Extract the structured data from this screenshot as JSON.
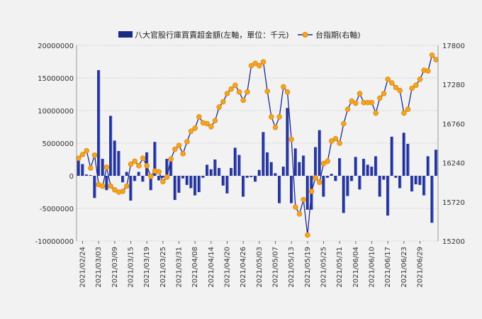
{
  "chart_data": {
    "type": "bar+line",
    "legend": {
      "placement": "top-center",
      "bar_label": "八大官股行庫買賣超金額(左軸，單位：千元)",
      "line_label": "台指期(右軸)"
    },
    "left_axis": {
      "min": -10000000,
      "max": 20000000,
      "ticks": [
        20000000,
        15000000,
        10000000,
        5000000,
        0,
        -5000000,
        -10000000
      ]
    },
    "right_axis": {
      "min": 15200,
      "max": 17800,
      "ticks": [
        17800,
        17280,
        16760,
        16240,
        15720,
        15200
      ]
    },
    "grid": "horizontal dotted",
    "x_ticks": [
      "2021/02/24",
      "2021/03/03",
      "2021/03/09",
      "2021/03/15",
      "2021/03/19",
      "2021/03/25",
      "2021/03/31",
      "2021/04/08",
      "2021/04/14",
      "2021/04/20",
      "2021/04/26",
      "2021/05/03",
      "2021/05/07",
      "2021/05/13",
      "2021/05/19",
      "2021/05/25",
      "2021/05/31",
      "2021/06/04",
      "2021/06/10",
      "2021/06/17",
      "2021/06/23",
      "2021/06/29"
    ],
    "x_tick_index": [
      1,
      5,
      9,
      13,
      17,
      21,
      25,
      29,
      33,
      37,
      41,
      45,
      49,
      53,
      57,
      61,
      65,
      69,
      73,
      77,
      81,
      85
    ],
    "bars": [
      2400000,
      1800000,
      200000,
      100000,
      -3400000,
      16200000,
      2600000,
      -2200000,
      9200000,
      5400000,
      3800000,
      -1000000,
      600000,
      -3800000,
      -800000,
      600000,
      -900000,
      3600000,
      -2200000,
      5200000,
      -700000,
      -300000,
      2600000,
      2700000,
      -3700000,
      -2600000,
      -400000,
      -1400000,
      -1900000,
      -3000000,
      -2500000,
      -300000,
      1700000,
      1000000,
      2500000,
      1200000,
      -1500000,
      -2700000,
      1200000,
      4300000,
      3200000,
      -3200000,
      -300000,
      -200000,
      -900000,
      900000,
      6700000,
      3600000,
      2100000,
      400000,
      -4200000,
      1400000,
      10400000,
      -4200000,
      4200000,
      2100000,
      3100000,
      -5200000,
      -5200000,
      4400000,
      7000000,
      -3200000,
      -300000,
      300000,
      -800000,
      2700000,
      -5700000,
      -3100000,
      -800000,
      2900000,
      -2100000,
      2600000,
      1700000,
      1400000,
      3000000,
      -3200000,
      -600000,
      -6100000,
      6000000,
      -300000,
      -1900000,
      6600000,
      4900000,
      -2400000,
      -1300000,
      -1400000,
      -3000000,
      3000000,
      -7200000,
      4000000
    ],
    "index": [
      16300,
      16350,
      16400,
      16170,
      16340,
      15950,
      15930,
      16180,
      15930,
      15880,
      15850,
      15860,
      15930,
      16220,
      16260,
      16200,
      16300,
      16200,
      16060,
      16130,
      16120,
      15990,
      16050,
      16290,
      16420,
      16470,
      16360,
      16520,
      16660,
      16700,
      16850,
      16770,
      16760,
      16720,
      16800,
      16980,
      17050,
      17160,
      17220,
      17270,
      17180,
      17070,
      17180,
      17530,
      17560,
      17530,
      17580,
      17190,
      16850,
      16710,
      16850,
      17250,
      17180,
      16550,
      15650,
      15560,
      15750,
      15280,
      15860,
      16040,
      15980,
      16230,
      16260,
      16530,
      16560,
      16500,
      16760,
      16950,
      17060,
      17030,
      17160,
      17040,
      17040,
      17040,
      16900,
      17100,
      17160,
      17350,
      17300,
      17240,
      17200,
      16900,
      16950,
      17230,
      17270,
      17350,
      17470,
      17460,
      17670,
      17610
    ]
  }
}
